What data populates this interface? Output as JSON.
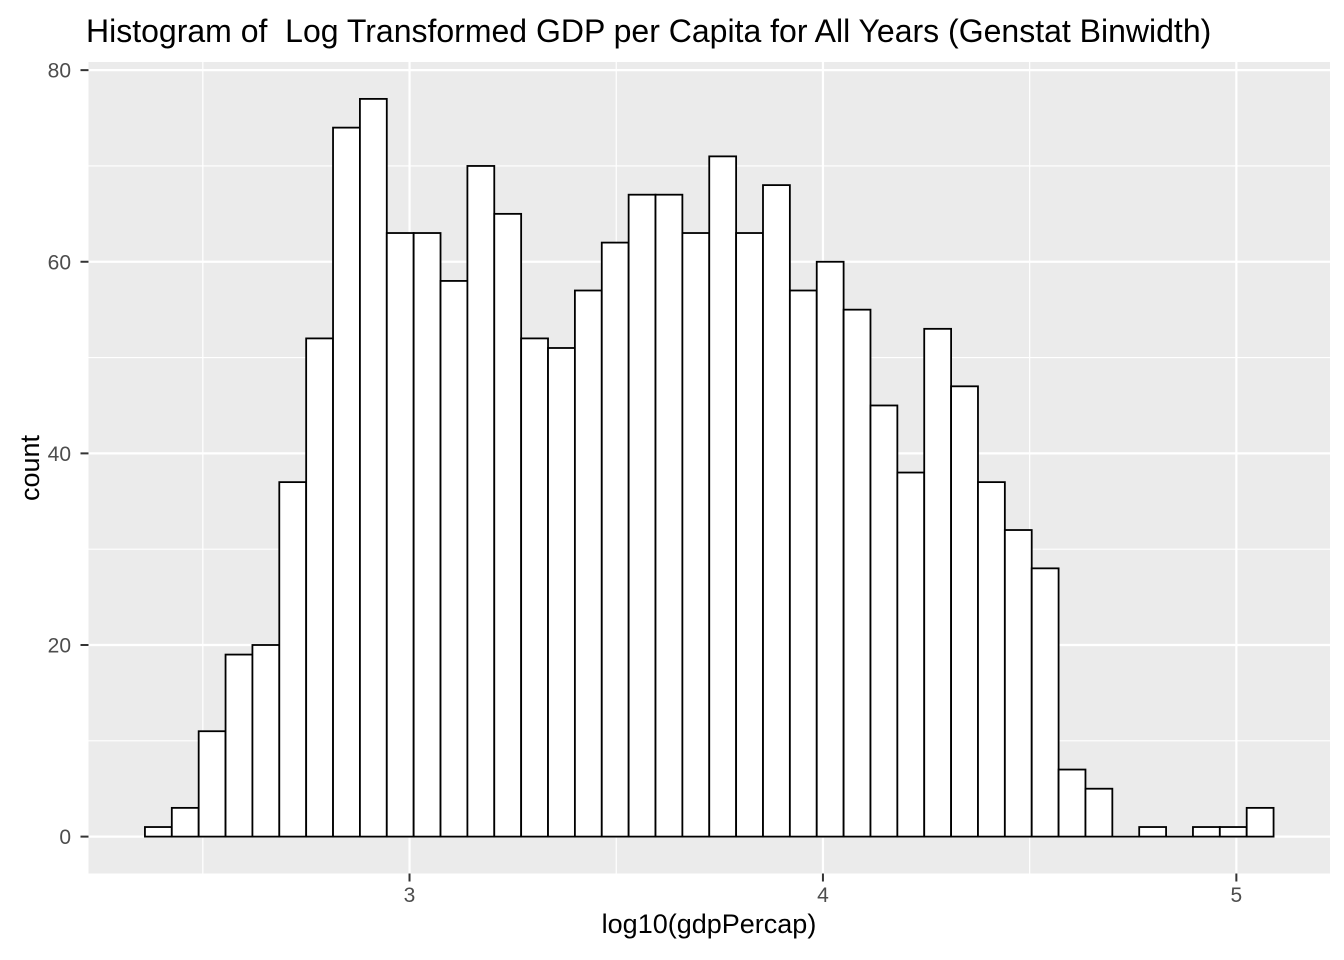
{
  "chart_data": {
    "type": "bar",
    "subtype": "histogram",
    "title": "Histogram of  Log Transformed GDP per Capita for All Years (Genstat Binwidth)",
    "xlabel": "log10(gdpPercap)",
    "ylabel": "count",
    "bin_start": 2.36,
    "bin_width": 0.065,
    "counts": [
      1,
      3,
      11,
      19,
      20,
      37,
      52,
      74,
      77,
      63,
      63,
      58,
      70,
      65,
      52,
      51,
      57,
      62,
      67,
      67,
      63,
      71,
      63,
      68,
      57,
      60,
      55,
      45,
      38,
      53,
      47,
      37,
      32,
      28,
      7,
      5,
      0,
      1,
      0,
      1,
      1,
      3
    ],
    "x_ticks": [
      3,
      4,
      5
    ],
    "x_minor_ticks": [
      2.5,
      3.5,
      4.5
    ],
    "y_ticks": [
      0,
      20,
      40,
      60,
      80
    ],
    "y_minor_ticks": [
      10,
      30,
      50,
      70
    ],
    "xlim": [
      2.2235,
      5.2265
    ],
    "ylim": [
      -3.85,
      80.85
    ],
    "grid": true,
    "legend": "none",
    "colors": {
      "background": "#FFFFFF",
      "panel_bg": "#EBEBEB",
      "grid": "#FFFFFF",
      "bar_fill": "#FFFFFF",
      "bar_stroke": "#000000",
      "tick_mark": "#333333",
      "tick_label": "#4D4D4D",
      "axis_title": "#000000",
      "title": "#000000"
    }
  }
}
